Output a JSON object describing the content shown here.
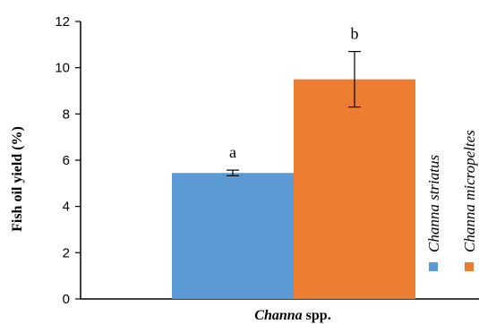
{
  "chart_data": {
    "type": "bar",
    "ylabel": "Fish oil yield (%)",
    "xlabel": {
      "italic": "Channa",
      "rest": " spp."
    },
    "ylim": [
      0,
      12
    ],
    "yticks": [
      "0",
      "2",
      "4",
      "6",
      "8",
      "10",
      "12"
    ],
    "grid": false,
    "legend_position": "right",
    "series": [
      {
        "name": "Channa striatus",
        "value": 5.45,
        "error": 0.12,
        "significance": "a",
        "color": "#5b9bd5"
      },
      {
        "name": "Channa micropeltes",
        "value": 9.5,
        "error": 1.2,
        "significance": "b",
        "color": "#ed7d31"
      }
    ]
  }
}
